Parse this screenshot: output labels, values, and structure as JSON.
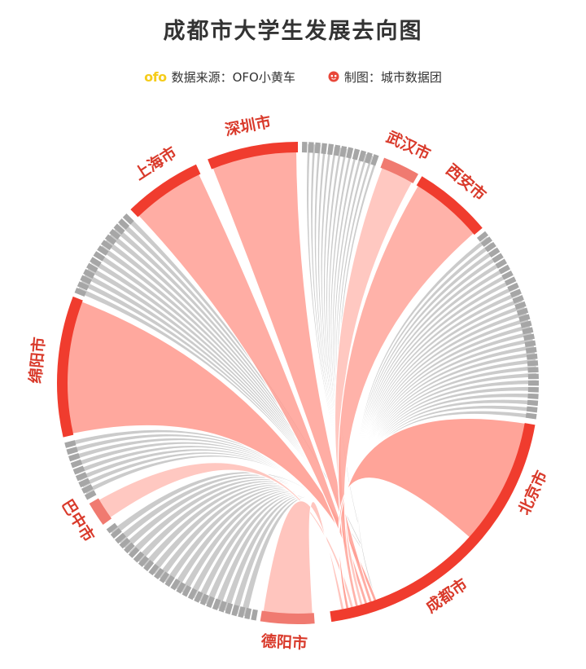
{
  "title": "成都市大学生发展去向图",
  "legend": {
    "source_logo": "ofo",
    "source_text": "数据来源：OFO小黄车",
    "maker_text": "制图：城市数据团"
  },
  "colors": {
    "accent": "#f03c2e",
    "ribbon_highlight": "#ff9f94",
    "ribbon_light": "#ffc2ba",
    "ribbon_gray": "#c8c8c8",
    "segment_gray": "#a6a6a6",
    "label": "#d93a2b"
  },
  "chart_data": {
    "type": "chord",
    "title": "成都市大学生发展去向图",
    "hub": "成都市",
    "nodes": [
      {
        "name": "北京市",
        "highlight": true
      },
      {
        "name": "成都市",
        "highlight": true
      },
      {
        "name": "德阳市",
        "highlight": true
      },
      {
        "name": "巴中市",
        "highlight": true
      },
      {
        "name": "绵阳市",
        "highlight": true
      },
      {
        "name": "上海市",
        "highlight": true
      },
      {
        "name": "深圳市",
        "highlight": true
      },
      {
        "name": "武汉市",
        "highlight": true
      },
      {
        "name": "西安市",
        "highlight": true
      }
    ]
  }
}
